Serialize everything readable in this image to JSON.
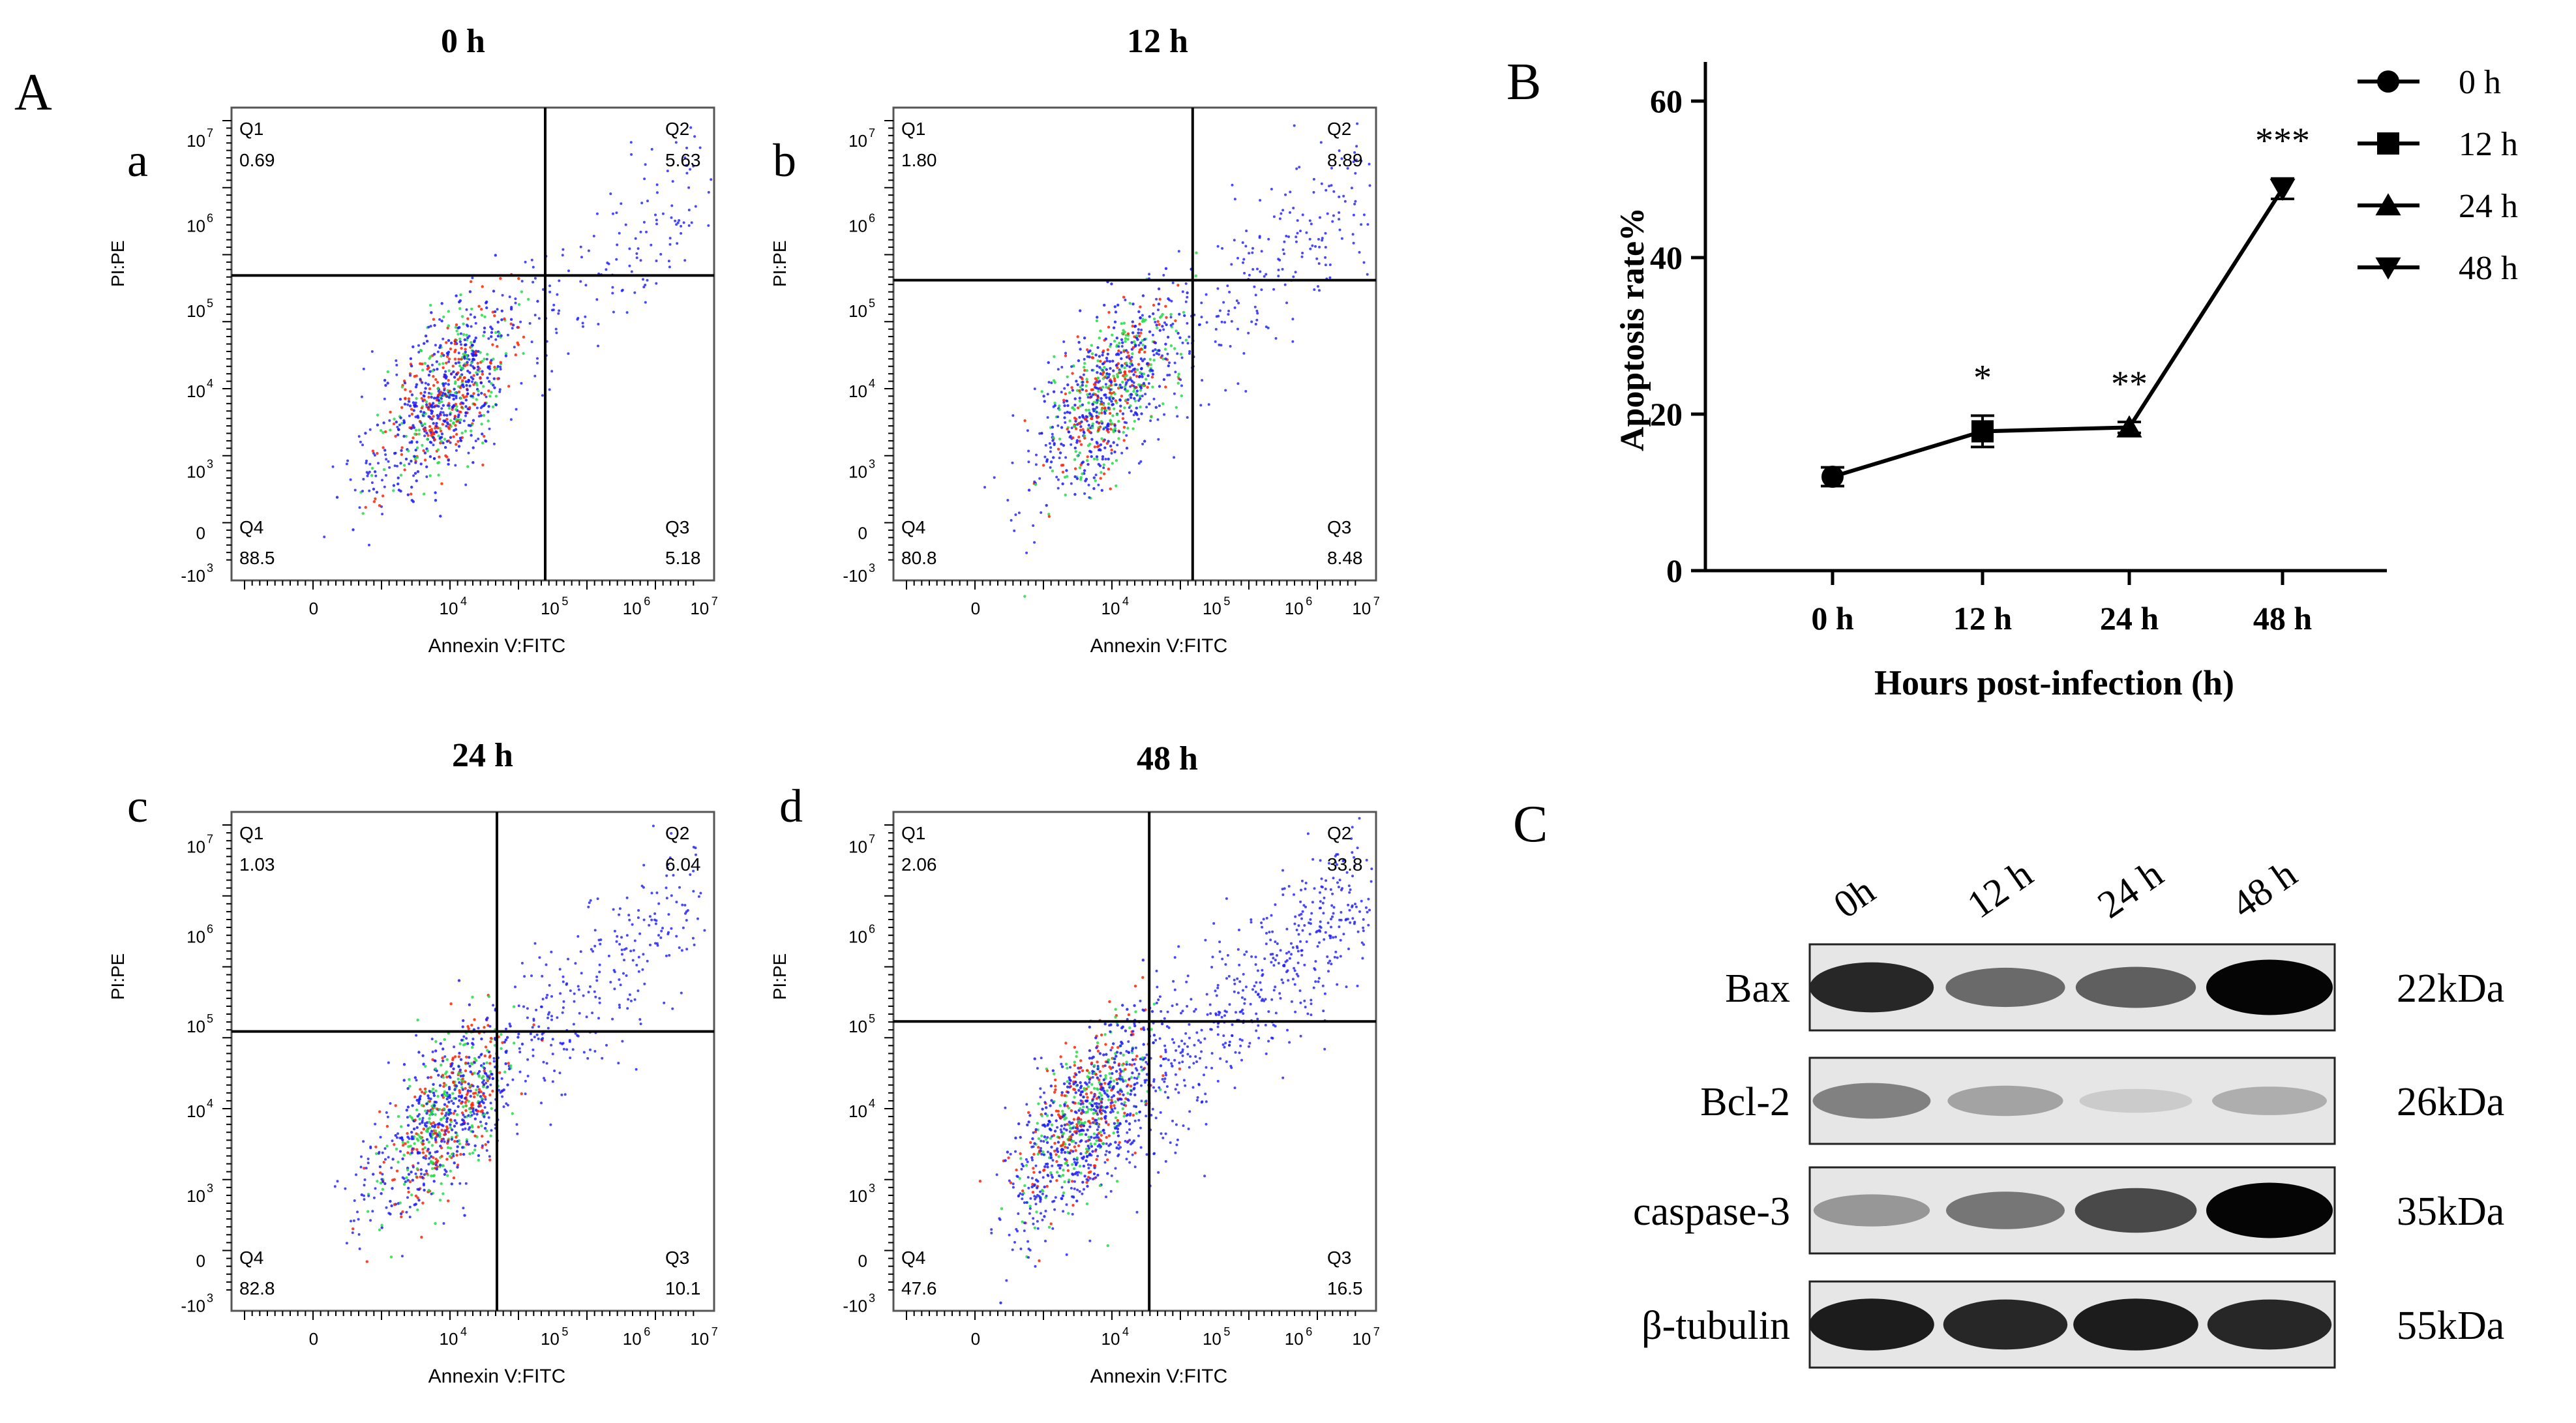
{
  "panel_letters": {
    "A": "A",
    "B": "B",
    "C": "C"
  },
  "flow": {
    "x_label": "Annexin V:FITC",
    "y_label": "PI:PE",
    "x_ticks": [
      "0",
      "10",
      "10",
      "10",
      "10"
    ],
    "x_tick_exps": [
      "",
      "4",
      "5",
      "6",
      "7"
    ],
    "y_ticks": [
      "-10",
      "0",
      "10",
      "10",
      "10",
      "10",
      "10"
    ],
    "y_tick_exps": [
      "3",
      "",
      "3",
      "4",
      "5",
      "6",
      "7"
    ],
    "q_names": [
      "Q1",
      "Q2",
      "Q3",
      "Q4"
    ],
    "plots": [
      {
        "letter": "a",
        "title": "0 h",
        "q1": "0.69",
        "q2": "5.63",
        "q3": "5.18",
        "q4": "88.5"
      },
      {
        "letter": "b",
        "title": "12 h",
        "q1": "1.80",
        "q2": "8.89",
        "q3": "8.48",
        "q4": "80.8"
      },
      {
        "letter": "c",
        "title": "24 h",
        "q1": "1.03",
        "q2": "6.04",
        "q3": "10.1",
        "q4": "82.8"
      },
      {
        "letter": "d",
        "title": "48 h",
        "q1": "2.06",
        "q2": "33.8",
        "q3": "16.5",
        "q4": "47.6"
      }
    ]
  },
  "chart_data": {
    "type": "line",
    "title": "",
    "xlabel": "Hours post-infection (h)",
    "ylabel": "Apoptosis rate%",
    "categories": [
      "0 h",
      "12 h",
      "24 h",
      "48 h"
    ],
    "values": [
      12.0,
      17.8,
      18.3,
      48.8
    ],
    "errors": [
      1.2,
      2.0,
      0.7,
      1.3
    ],
    "significance": [
      "",
      "*",
      "**",
      "***"
    ],
    "y_ticks": [
      0,
      20,
      40,
      60
    ],
    "ylim": [
      0,
      65
    ],
    "legend": {
      "position": "top-right",
      "entries": [
        "0 h",
        "12 h",
        "24 h",
        "48 h"
      ],
      "markers": [
        "circle",
        "square",
        "triangle-up",
        "triangle-down"
      ]
    }
  },
  "western": {
    "lanes": [
      "0h",
      "12 h",
      "24 h",
      "48 h"
    ],
    "rows": [
      {
        "protein": "Bax",
        "kda": "22kDa",
        "intensity": [
          0.85,
          0.55,
          0.6,
          1.0
        ]
      },
      {
        "protein": "Bcl-2",
        "kda": "26kDa",
        "intensity": [
          0.45,
          0.3,
          0.12,
          0.25
        ]
      },
      {
        "protein": "caspase-3",
        "kda": "35kDa",
        "intensity": [
          0.35,
          0.5,
          0.7,
          1.0
        ]
      },
      {
        "protein": "β-tubulin",
        "kda": "55kDa",
        "intensity": [
          0.9,
          0.85,
          0.9,
          0.85
        ]
      }
    ]
  },
  "colors": {
    "line": "#000000",
    "dots_low": "#1a1aff",
    "dots_mid": "#22dd44",
    "dots_high": "#ff2200"
  }
}
